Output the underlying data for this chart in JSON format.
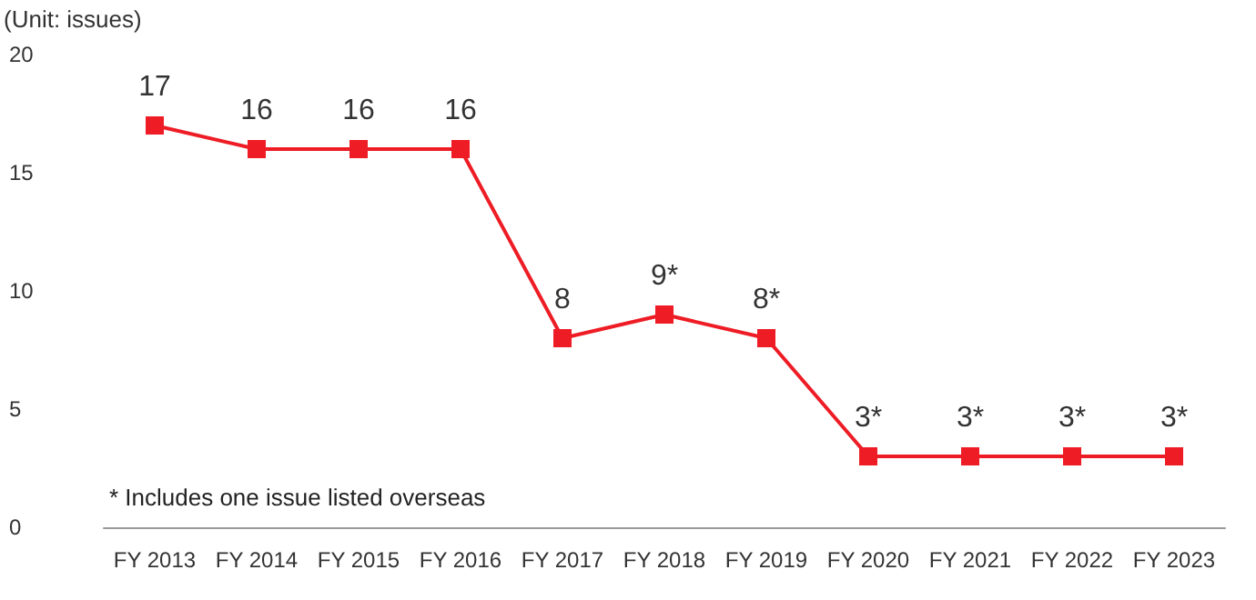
{
  "chart_data": {
    "type": "line",
    "ylabel": "(Unit: issues)",
    "categories": [
      "FY 2013",
      "FY 2014",
      "FY 2015",
      "FY 2016",
      "FY 2017",
      "FY 2018",
      "FY 2019",
      "FY 2020",
      "FY 2021",
      "FY 2022",
      "FY 2023"
    ],
    "series": [
      {
        "color": "#ee1c25",
        "values": [
          17,
          16,
          16,
          16,
          8,
          9,
          8,
          3,
          3,
          3,
          3
        ],
        "value_labels": [
          "17",
          "16",
          "16",
          "16",
          "8",
          "9*",
          "8*",
          "3*",
          "3*",
          "3*",
          "3*"
        ]
      }
    ],
    "ylim": [
      0,
      20
    ],
    "yticks": [
      0,
      5,
      10,
      15,
      20
    ],
    "grid": false,
    "marker": "square",
    "line_style": "solid",
    "annotations": [
      "* Includes one issue listed overseas"
    ]
  }
}
